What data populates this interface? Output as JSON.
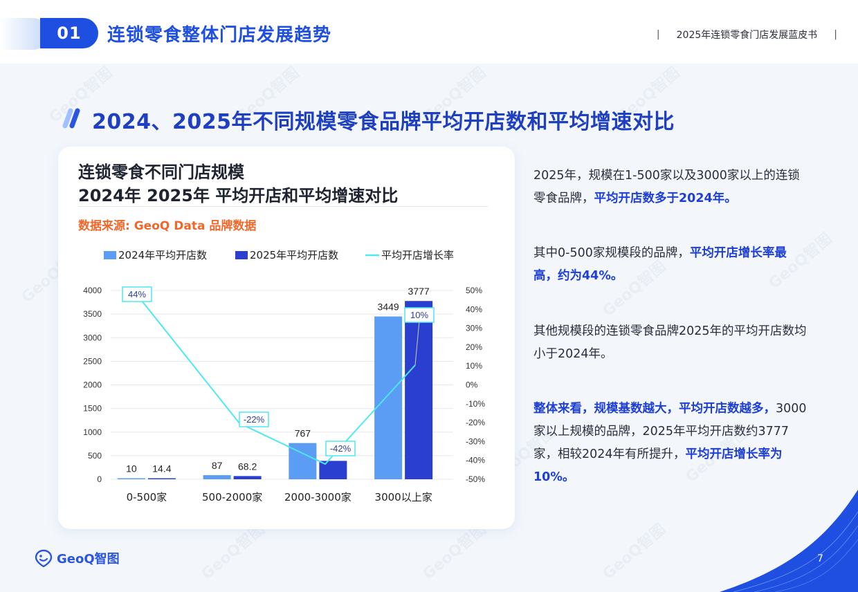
{
  "header": {
    "section_number": "01",
    "section_title": "连锁零食整体门店发展趋势",
    "report_name": "2025年连锁零食门店发展蓝皮书",
    "separator": "|"
  },
  "slide_title": "2024、2025年不同规模零食品牌平均开店数和平均增速对比",
  "chart_card": {
    "title_line1": "连锁零食不同门店规模",
    "title_line2": "2024年 2025年 平均开店和平均增速对比",
    "source": "数据来源: GeoQ Data 品牌数据"
  },
  "chart_data": {
    "type": "bar",
    "categories": [
      "0-500家",
      "500-2000家",
      "2000-3000家",
      "3000以上家"
    ],
    "series": [
      {
        "name": "2024年平均开店数",
        "type": "bar",
        "values": [
          10,
          87,
          767,
          3449
        ],
        "labels": [
          "10",
          "87",
          "767",
          "3449"
        ],
        "color": "#5b9cf4"
      },
      {
        "name": "2025年平均开店数",
        "type": "bar",
        "values": [
          14.4,
          68.2,
          null,
          3777
        ],
        "labels": [
          "14.4",
          "68.2",
          "",
          "3777"
        ],
        "color": "#2a3fd0"
      },
      {
        "name": "平均开店增长率",
        "type": "line",
        "axis": "right",
        "values": [
          44,
          -22,
          -42,
          10
        ],
        "labels": [
          "44%",
          "-22%",
          "-42%",
          "10%"
        ],
        "color": "#4de8f0"
      }
    ],
    "left_axis": {
      "ticks": [
        "0",
        "500",
        "1000",
        "1500",
        "2000",
        "2500",
        "3000",
        "3500",
        "4000"
      ],
      "ylim": [
        0,
        4000
      ]
    },
    "right_axis": {
      "ticks": [
        "-50%",
        "-40%",
        "-30%",
        "-20%",
        "-10%",
        "0%",
        "10%",
        "20%",
        "30%",
        "40%",
        "50%"
      ],
      "ylim": [
        -50,
        50
      ]
    },
    "legend_placement": "top",
    "grid": true
  },
  "right_text": {
    "p1_a": "2025年，规模在1-500家以及3000家以上的连锁零食品牌，",
    "p1_hl": "平均开店数多于2024年。",
    "p2_a": "其中0-500家规模段的品牌，",
    "p2_hl": "平均开店增长率最高，约为44%。",
    "p3": "其他规模段的连锁零食品牌2025年的平均开店数均小于2024年。",
    "p4_hl": "整体来看，规模基数越大，平均开店数越多，",
    "p4_a": "3000家以上规模的品牌，2025年平均开店数约3777家，相较2024年有所提升，",
    "p4_hl2": "平均开店增长率为10%。"
  },
  "footer": {
    "logo_text": "GeoQ智图",
    "page_number": "7"
  },
  "watermark_text": "GeoQ智图",
  "colors": {
    "brand_blue": "#1e4fe0",
    "highlight_blue": "#1e3fd6",
    "source_orange": "#f0672a"
  }
}
